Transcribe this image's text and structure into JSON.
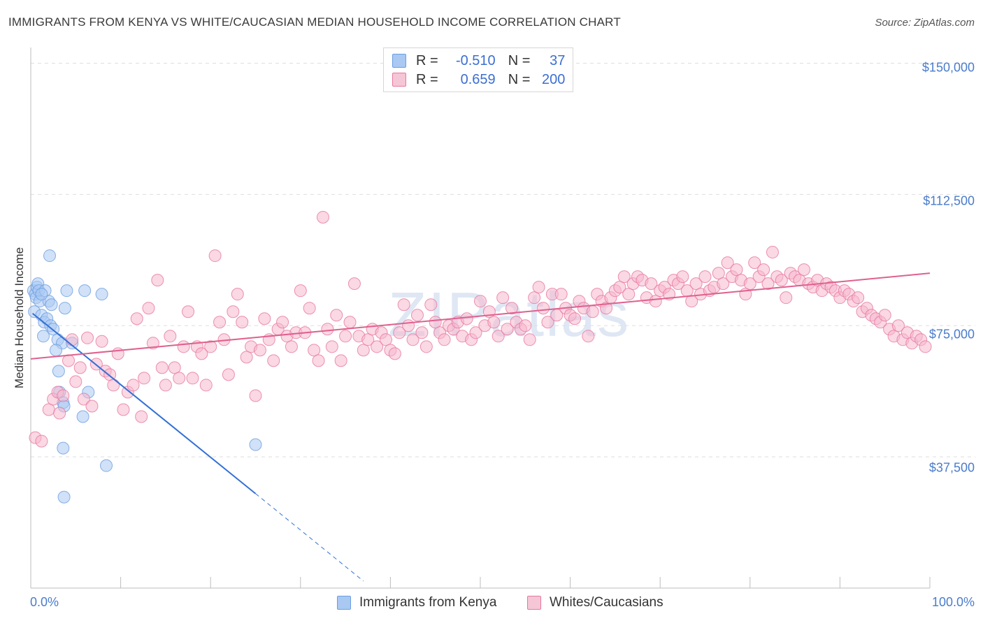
{
  "chart_data": {
    "type": "scatter",
    "title": "IMMIGRANTS FROM KENYA VS WHITE/CAUCASIAN MEDIAN HOUSEHOLD INCOME CORRELATION CHART",
    "source": "Source: ZipAtlas.com",
    "ylabel": "Median Household Income",
    "xlabel": "",
    "xlim": [
      0,
      100
    ],
    "ylim": [
      0,
      152500
    ],
    "x_tick_labels": {
      "min": "0.0%",
      "max": "100.0%"
    },
    "y_ticks": [
      {
        "value": 150000,
        "label": "$150,000"
      },
      {
        "value": 112500,
        "label": "$112,500"
      },
      {
        "value": 75000,
        "label": "$75,000"
      },
      {
        "value": 37500,
        "label": "$37,500"
      }
    ],
    "watermark": {
      "zip": "ZIP",
      "atlas": "atlas"
    },
    "legend": {
      "rows": [
        {
          "r_label": "R =",
          "r_value": "-0.510",
          "n_label": "N =",
          "n_value": "37",
          "color": "#a9c8f2"
        },
        {
          "r_label": "R =",
          "r_value": "0.659",
          "n_label": "N =",
          "n_value": "200",
          "color": "#f5b8cd"
        }
      ]
    },
    "series": [
      {
        "name": "Immigrants from Kenya",
        "color": "#a9c8f2",
        "stroke": "#6b9ee0",
        "trend": {
          "x0": 0.2,
          "y0": 78500,
          "x1": 25,
          "y1": 27000,
          "dash_to_x": 37,
          "dash_to_y": 2000,
          "color": "#3370d6"
        },
        "points": [
          [
            0.3,
            85000
          ],
          [
            0.5,
            84000
          ],
          [
            0.6,
            83000
          ],
          [
            0.7,
            86000
          ],
          [
            0.8,
            87000
          ],
          [
            0.9,
            85000
          ],
          [
            1.0,
            82000
          ],
          [
            0.4,
            79000
          ],
          [
            1.2,
            78000
          ],
          [
            1.5,
            76000
          ],
          [
            1.8,
            77000
          ],
          [
            2.2,
            75000
          ],
          [
            2.5,
            74000
          ],
          [
            1.4,
            72000
          ],
          [
            3.0,
            71000
          ],
          [
            3.5,
            70000
          ],
          [
            2.8,
            68000
          ],
          [
            4.0,
            85000
          ],
          [
            3.8,
            80000
          ],
          [
            2.0,
            82000
          ],
          [
            2.3,
            81000
          ],
          [
            1.6,
            85000
          ],
          [
            1.2,
            84000
          ],
          [
            2.1,
            95000
          ],
          [
            6.0,
            85000
          ],
          [
            7.9,
            84000
          ],
          [
            3.1,
            62000
          ],
          [
            3.2,
            56000
          ],
          [
            3.6,
            53000
          ],
          [
            3.7,
            52000
          ],
          [
            6.4,
            56000
          ],
          [
            5.8,
            49000
          ],
          [
            3.6,
            40000
          ],
          [
            8.4,
            35000
          ],
          [
            3.7,
            26000
          ],
          [
            25.0,
            41000
          ],
          [
            4.6,
            70000
          ]
        ]
      },
      {
        "name": "Whites/Caucasians",
        "color": "#f5b8cd",
        "stroke": "#e8779d",
        "trend": {
          "x0": 0,
          "y0": 65500,
          "x1": 100,
          "y1": 90000,
          "color": "#e0608e"
        },
        "points": [
          [
            0.5,
            43000
          ],
          [
            1.2,
            42000
          ],
          [
            2.0,
            51000
          ],
          [
            2.5,
            54000
          ],
          [
            3.0,
            56000
          ],
          [
            3.2,
            50000
          ],
          [
            3.6,
            55000
          ],
          [
            4.2,
            65000
          ],
          [
            4.6,
            71000
          ],
          [
            5.0,
            59000
          ],
          [
            5.5,
            63000
          ],
          [
            5.9,
            54000
          ],
          [
            6.3,
            71500
          ],
          [
            6.8,
            52000
          ],
          [
            7.3,
            64000
          ],
          [
            7.9,
            70500
          ],
          [
            8.3,
            62000
          ],
          [
            8.8,
            61000
          ],
          [
            9.2,
            58000
          ],
          [
            9.7,
            67000
          ],
          [
            10.3,
            51000
          ],
          [
            10.8,
            56000
          ],
          [
            11.4,
            58000
          ],
          [
            11.8,
            77000
          ],
          [
            12.3,
            49000
          ],
          [
            12.6,
            60000
          ],
          [
            13.1,
            80000
          ],
          [
            13.6,
            70000
          ],
          [
            14.1,
            88000
          ],
          [
            14.6,
            63000
          ],
          [
            15.0,
            58000
          ],
          [
            15.5,
            72000
          ],
          [
            16.0,
            63000
          ],
          [
            16.5,
            60000
          ],
          [
            17.0,
            69000
          ],
          [
            17.5,
            79000
          ],
          [
            18.0,
            60000
          ],
          [
            18.5,
            69000
          ],
          [
            19.0,
            67000
          ],
          [
            19.5,
            58000
          ],
          [
            20.0,
            69000
          ],
          [
            20.5,
            95000
          ],
          [
            21.0,
            76000
          ],
          [
            21.5,
            71000
          ],
          [
            22.0,
            61000
          ],
          [
            22.5,
            79000
          ],
          [
            23.0,
            84000
          ],
          [
            23.5,
            76000
          ],
          [
            24.0,
            66000
          ],
          [
            24.5,
            69000
          ],
          [
            25.0,
            55000
          ],
          [
            25.5,
            68000
          ],
          [
            26.0,
            77000
          ],
          [
            26.5,
            71000
          ],
          [
            27.0,
            65000
          ],
          [
            27.5,
            74000
          ],
          [
            28.0,
            76000
          ],
          [
            28.5,
            72000
          ],
          [
            29.0,
            69000
          ],
          [
            29.5,
            73000
          ],
          [
            30.0,
            85000
          ],
          [
            30.5,
            73000
          ],
          [
            31.0,
            80000
          ],
          [
            31.5,
            68000
          ],
          [
            32.0,
            65000
          ],
          [
            32.5,
            106000
          ],
          [
            33.0,
            74000
          ],
          [
            33.5,
            69000
          ],
          [
            34.0,
            78000
          ],
          [
            34.5,
            65000
          ],
          [
            35.0,
            72000
          ],
          [
            35.5,
            76000
          ],
          [
            36.0,
            87000
          ],
          [
            36.5,
            72000
          ],
          [
            37.0,
            68000
          ],
          [
            37.5,
            71000
          ],
          [
            38.0,
            74000
          ],
          [
            38.5,
            69000
          ],
          [
            39.0,
            73000
          ],
          [
            39.5,
            71000
          ],
          [
            40.0,
            68000
          ],
          [
            40.5,
            67000
          ],
          [
            41.0,
            73000
          ],
          [
            41.5,
            81000
          ],
          [
            42.0,
            75000
          ],
          [
            42.5,
            71000
          ],
          [
            43.0,
            78000
          ],
          [
            43.5,
            73000
          ],
          [
            44.0,
            69000
          ],
          [
            44.5,
            81000
          ],
          [
            45.0,
            76000
          ],
          [
            45.5,
            73000
          ],
          [
            46.0,
            71000
          ],
          [
            46.5,
            75000
          ],
          [
            47.0,
            74000
          ],
          [
            47.5,
            76000
          ],
          [
            48.0,
            72000
          ],
          [
            48.5,
            77000
          ],
          [
            49.0,
            71000
          ],
          [
            49.5,
            73000
          ],
          [
            50.0,
            82000
          ],
          [
            50.5,
            75000
          ],
          [
            51.0,
            79000
          ],
          [
            51.5,
            76000
          ],
          [
            52.0,
            72000
          ],
          [
            52.5,
            83000
          ],
          [
            53.0,
            74000
          ],
          [
            53.5,
            80000
          ],
          [
            54.0,
            76000
          ],
          [
            54.5,
            74000
          ],
          [
            55.0,
            75000
          ],
          [
            55.5,
            71000
          ],
          [
            56.0,
            83000
          ],
          [
            56.5,
            86000
          ],
          [
            57.0,
            80000
          ],
          [
            57.5,
            76000
          ],
          [
            58.0,
            84000
          ],
          [
            58.5,
            78000
          ],
          [
            59.0,
            84000
          ],
          [
            59.5,
            80000
          ],
          [
            60.0,
            78000
          ],
          [
            60.5,
            77000
          ],
          [
            61.0,
            82000
          ],
          [
            61.5,
            80000
          ],
          [
            62.0,
            72000
          ],
          [
            62.5,
            79000
          ],
          [
            63.0,
            84000
          ],
          [
            63.5,
            82000
          ],
          [
            64.0,
            80000
          ],
          [
            64.5,
            83000
          ],
          [
            65.0,
            85000
          ],
          [
            65.5,
            86000
          ],
          [
            66.0,
            89000
          ],
          [
            66.5,
            84000
          ],
          [
            67.0,
            87000
          ],
          [
            67.5,
            89000
          ],
          [
            68.0,
            88000
          ],
          [
            68.5,
            83000
          ],
          [
            69.0,
            87000
          ],
          [
            69.5,
            82000
          ],
          [
            70.0,
            85000
          ],
          [
            70.5,
            86000
          ],
          [
            71.0,
            84000
          ],
          [
            71.5,
            88000
          ],
          [
            72.0,
            87000
          ],
          [
            72.5,
            89000
          ],
          [
            73.0,
            85000
          ],
          [
            73.5,
            82000
          ],
          [
            74.0,
            87000
          ],
          [
            74.5,
            84000
          ],
          [
            75.0,
            89000
          ],
          [
            75.5,
            85000
          ],
          [
            76.0,
            86000
          ],
          [
            76.5,
            90000
          ],
          [
            77.0,
            87000
          ],
          [
            77.5,
            93000
          ],
          [
            78.0,
            89000
          ],
          [
            78.5,
            91000
          ],
          [
            79.0,
            88000
          ],
          [
            79.5,
            84000
          ],
          [
            80.0,
            87000
          ],
          [
            80.5,
            93000
          ],
          [
            81.0,
            89000
          ],
          [
            81.5,
            91000
          ],
          [
            82.0,
            87000
          ],
          [
            82.5,
            96000
          ],
          [
            83.0,
            89000
          ],
          [
            83.5,
            88000
          ],
          [
            84.0,
            83000
          ],
          [
            84.5,
            90000
          ],
          [
            85.0,
            89000
          ],
          [
            85.5,
            88000
          ],
          [
            86.0,
            91000
          ],
          [
            86.5,
            87000
          ],
          [
            87.0,
            86000
          ],
          [
            87.5,
            88000
          ],
          [
            88.0,
            85000
          ],
          [
            88.5,
            87000
          ],
          [
            89.0,
            86000
          ],
          [
            89.5,
            85000
          ],
          [
            90.0,
            83000
          ],
          [
            90.5,
            85000
          ],
          [
            91.0,
            84000
          ],
          [
            91.5,
            82000
          ],
          [
            92.0,
            83000
          ],
          [
            92.5,
            79000
          ],
          [
            93.0,
            80000
          ],
          [
            93.5,
            78000
          ],
          [
            94.0,
            77000
          ],
          [
            94.5,
            76000
          ],
          [
            95.0,
            78000
          ],
          [
            95.5,
            74000
          ],
          [
            96.0,
            72000
          ],
          [
            96.5,
            75000
          ],
          [
            97.0,
            71000
          ],
          [
            97.5,
            73000
          ],
          [
            98.0,
            70000
          ],
          [
            98.5,
            72000
          ],
          [
            99.0,
            71000
          ],
          [
            99.5,
            69000
          ]
        ]
      }
    ]
  }
}
